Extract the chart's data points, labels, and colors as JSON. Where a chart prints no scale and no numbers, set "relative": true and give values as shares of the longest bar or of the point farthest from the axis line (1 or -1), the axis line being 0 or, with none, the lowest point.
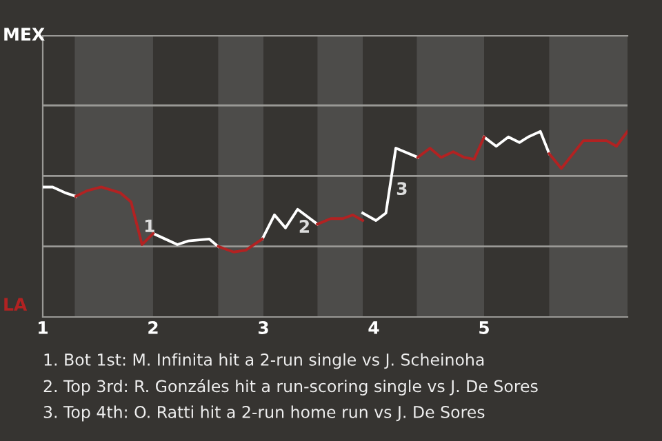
{
  "chart_data": {
    "type": "line",
    "x": [
      1,
      1.09,
      1.2,
      1.3,
      1.4,
      1.53,
      1.7,
      1.8,
      1.9,
      2,
      2.11,
      2.22,
      2.32,
      2.51,
      2.59,
      2.73,
      2.84,
      2.99,
      3.1,
      3.2,
      3.31,
      3.49,
      3.61,
      3.72,
      3.81,
      3.9,
      4.02,
      4.11,
      4.2,
      4.4,
      4.51,
      4.61,
      4.72,
      4.82,
      4.91,
      5,
      5.11,
      5.22,
      5.32,
      5.4,
      5.51,
      5.59,
      5.7,
      5.9,
      6.11,
      6.2,
      6.3
    ],
    "xlim": [
      1,
      6.3
    ],
    "xticks": [
      1,
      2,
      3,
      4,
      5
    ],
    "relative": true,
    "series": [
      {
        "color": "#ffffff",
        "values": [
          0.7,
          0.7,
          0.67,
          0.65,
          null,
          null,
          null,
          null,
          null,
          0.45,
          0.42,
          0.39,
          0.41,
          0.42,
          0.38,
          null,
          null,
          0.42,
          0.55,
          0.48,
          0.58,
          0.5,
          null,
          null,
          null,
          0.56,
          0.52,
          0.56,
          0.91,
          0.86,
          null,
          null,
          null,
          null,
          null,
          0.97,
          0.92,
          0.97,
          0.94,
          0.97,
          1,
          0.88,
          null,
          null,
          null,
          null,
          null
        ]
      },
      {
        "color": "#b22222",
        "values": [
          null,
          null,
          null,
          0.65,
          0.68,
          0.7,
          0.67,
          0.62,
          0.39,
          0.45,
          null,
          null,
          null,
          null,
          0.38,
          0.35,
          0.36,
          0.42,
          null,
          null,
          null,
          0.5,
          0.53,
          0.53,
          0.55,
          0.52,
          null,
          null,
          null,
          0.86,
          0.91,
          0.86,
          0.89,
          0.86,
          0.85,
          0.97,
          null,
          null,
          null,
          null,
          null,
          0.88,
          0.8,
          0.95,
          0.95,
          0.92,
          1
        ]
      }
    ],
    "ref_lines": [
      {
        "axis": "y",
        "value": 0.38,
        "color": "#9a9996"
      },
      {
        "axis": "y",
        "value": 0.76,
        "color": "#9a9996"
      },
      {
        "axis": "y",
        "value": 1.14,
        "color": "#9a9996"
      }
    ],
    "bands": [
      {
        "axis": "x",
        "from": 1.29,
        "to": 2,
        "color": "#4d4c4a"
      },
      {
        "axis": "x",
        "from": 2.59,
        "to": 3,
        "color": "#4d4c4a"
      },
      {
        "axis": "x",
        "from": 3.49,
        "to": 3.9,
        "color": "#4d4c4a"
      },
      {
        "axis": "x",
        "from": 4.39,
        "to": 5,
        "color": "#4d4c4a"
      },
      {
        "axis": "x",
        "from": 5.59,
        "to": 6.3,
        "color": "#4d4c4a"
      }
    ],
    "annotations": [
      "MEX",
      "LA",
      {
        "text": "1",
        "x": 1.9,
        "y": 0.39
      },
      {
        "text": "2",
        "x": 3.2,
        "y": 0.48
      },
      {
        "text": "3",
        "x": 4.11,
        "y": 0.56
      },
      "1. Bot 1st: M. Infinita hit a 2-run single vs J. Scheinoha",
      "2. Top 3rd: R. Gonzáles hit a run-scoring single vs J. De Sores",
      "3. Top 4th: O. Ratti hit a 2-run home run vs J. De Sores"
    ]
  }
}
